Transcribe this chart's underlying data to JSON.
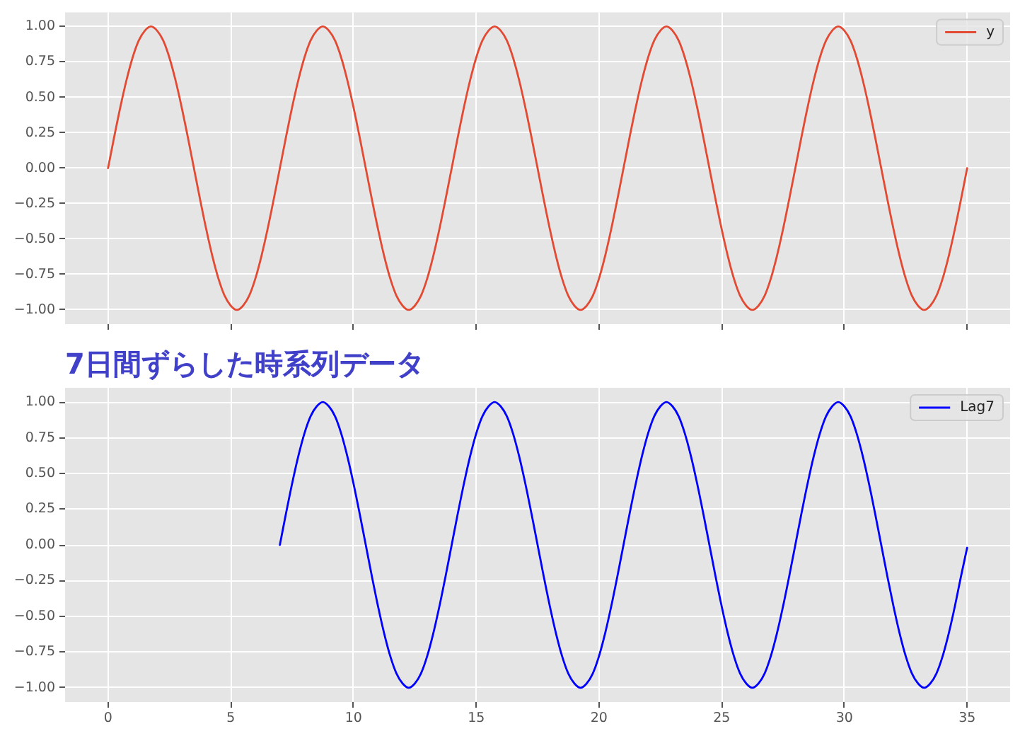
{
  "chart_data": [
    {
      "type": "line",
      "x": [
        0,
        0.25,
        0.5,
        0.75,
        1,
        1.25,
        1.5,
        1.75,
        2,
        2.25,
        2.5,
        2.75,
        3,
        3.25,
        3.5,
        3.75,
        4,
        4.25,
        4.5,
        4.75,
        5,
        5.25,
        5.5,
        5.75,
        6,
        6.25,
        6.5,
        6.75,
        7,
        7.25,
        7.5,
        7.75,
        8,
        8.25,
        8.5,
        8.75,
        9,
        9.25,
        9.5,
        9.75,
        10,
        10.25,
        10.5,
        10.75,
        11,
        11.25,
        11.5,
        11.75,
        12,
        12.25,
        12.5,
        12.75,
        13,
        13.25,
        13.5,
        13.75,
        14,
        14.25,
        14.5,
        14.75,
        15,
        15.25,
        15.5,
        15.75,
        16,
        16.25,
        16.5,
        16.75,
        17,
        17.25,
        17.5,
        17.75,
        18,
        18.25,
        18.5,
        18.75,
        19,
        19.25,
        19.5,
        19.75,
        20,
        20.25,
        20.5,
        20.75,
        21,
        21.25,
        21.5,
        21.75,
        22,
        22.25,
        22.5,
        22.75,
        23,
        23.25,
        23.5,
        23.75,
        24,
        24.25,
        24.5,
        24.75,
        25,
        25.25,
        25.5,
        25.75,
        26,
        26.25,
        26.5,
        26.75,
        27,
        27.25,
        27.5,
        27.75,
        28,
        28.25,
        28.5,
        28.75,
        29,
        29.25,
        29.5,
        29.75,
        30,
        30.25,
        30.5,
        30.75,
        31,
        31.25,
        31.5,
        31.75,
        32,
        32.25,
        32.5,
        32.75,
        33,
        33.25,
        33.5,
        33.75,
        34,
        34.25,
        34.5,
        34.75,
        35
      ],
      "series": [
        {
          "name": "y",
          "color": "#e24a33",
          "values": [
            0,
            0.22,
            0.43,
            0.62,
            0.78,
            0.9,
            0.97,
            1,
            0.97,
            0.9,
            0.78,
            0.62,
            0.43,
            0.22,
            0,
            -0.22,
            -0.43,
            -0.62,
            -0.78,
            -0.9,
            -0.97,
            -1,
            -0.97,
            -0.9,
            -0.78,
            -0.62,
            -0.43,
            -0.22,
            0,
            0.22,
            0.43,
            0.62,
            0.78,
            0.9,
            0.97,
            1,
            0.97,
            0.9,
            0.78,
            0.62,
            0.43,
            0.22,
            0,
            -0.22,
            -0.43,
            -0.62,
            -0.78,
            -0.9,
            -0.97,
            -1,
            -0.97,
            -0.9,
            -0.78,
            -0.62,
            -0.43,
            -0.22,
            0,
            0.22,
            0.43,
            0.62,
            0.78,
            0.9,
            0.97,
            1,
            0.97,
            0.9,
            0.78,
            0.62,
            0.43,
            0.22,
            0,
            -0.22,
            -0.43,
            -0.62,
            -0.78,
            -0.9,
            -0.97,
            -1,
            -0.97,
            -0.9,
            -0.78,
            -0.62,
            -0.43,
            -0.22,
            0,
            0.22,
            0.43,
            0.62,
            0.78,
            0.9,
            0.97,
            1,
            0.97,
            0.9,
            0.78,
            0.62,
            0.43,
            0.22,
            0,
            -0.22,
            -0.43,
            -0.62,
            -0.78,
            -0.9,
            -0.97,
            -1,
            -0.97,
            -0.9,
            -0.78,
            -0.62,
            -0.43,
            -0.22,
            0,
            0.22,
            0.43,
            0.62,
            0.78,
            0.9,
            0.97,
            1,
            0.97,
            0.9,
            0.78,
            0.62,
            0.43,
            0.22,
            0,
            -0.22,
            -0.43,
            -0.62,
            -0.78,
            -0.9,
            -0.97,
            -1,
            -0.97,
            -0.9,
            -0.78,
            -0.62,
            -0.43,
            -0.22,
            0
          ]
        }
      ],
      "xlim": [
        -1.75,
        36.75
      ],
      "ylim": [
        -1.1,
        1.1
      ],
      "xticks": [
        0,
        5,
        10,
        15,
        20,
        25,
        30,
        35
      ],
      "yticks": [
        {
          "value": -1,
          "label": "−1.00"
        },
        {
          "value": -0.75,
          "label": "−0.75"
        },
        {
          "value": -0.5,
          "label": "−0.50"
        },
        {
          "value": -0.25,
          "label": "−0.25"
        },
        {
          "value": 0,
          "label": "0.00"
        },
        {
          "value": 0.25,
          "label": "0.25"
        },
        {
          "value": 0.5,
          "label": "0.50"
        },
        {
          "value": 0.75,
          "label": "0.75"
        },
        {
          "value": 1,
          "label": "1.00"
        }
      ],
      "tick_labels": "y",
      "grid": true,
      "legend": "top right"
    },
    {
      "type": "line",
      "title": "7日間ずらした時系列データ",
      "series": [
        {
          "name": "Lag7",
          "color": "#0000ff",
          "x": [
            7,
            7.25,
            7.5,
            7.75,
            8,
            8.25,
            8.5,
            8.75,
            9,
            9.25,
            9.5,
            9.75,
            10,
            10.25,
            10.5,
            10.75,
            11,
            11.25,
            11.5,
            11.75,
            12,
            12.25,
            12.5,
            12.75,
            13,
            13.25,
            13.5,
            13.75,
            14,
            14.25,
            14.5,
            14.75,
            15,
            15.25,
            15.5,
            15.75,
            16,
            16.25,
            16.5,
            16.75,
            17,
            17.25,
            17.5,
            17.75,
            18,
            18.25,
            18.5,
            18.75,
            19,
            19.25,
            19.5,
            19.75,
            20,
            20.25,
            20.5,
            20.75,
            21,
            21.25,
            21.5,
            21.75,
            22,
            22.25,
            22.5,
            22.75,
            23,
            23.25,
            23.5,
            23.75,
            24,
            24.25,
            24.5,
            24.75,
            25,
            25.25,
            25.5,
            25.75,
            26,
            26.25,
            26.5,
            26.75,
            27,
            27.25,
            27.5,
            27.75,
            28,
            28.25,
            28.5,
            28.75,
            29,
            29.25,
            29.5,
            29.75,
            30,
            30.25,
            30.5,
            30.75,
            31,
            31.25,
            31.5,
            31.75,
            32,
            32.25,
            32.5,
            32.75,
            33,
            33.25,
            33.5,
            33.75,
            34,
            34.25,
            34.5,
            34.75,
            35
          ],
          "values": [
            0,
            0.22,
            0.43,
            0.62,
            0.78,
            0.9,
            0.97,
            1,
            0.97,
            0.9,
            0.78,
            0.62,
            0.43,
            0.22,
            0,
            -0.22,
            -0.43,
            -0.62,
            -0.78,
            -0.9,
            -0.97,
            -1,
            -0.97,
            -0.9,
            -0.78,
            -0.62,
            -0.43,
            -0.22,
            0,
            0.22,
            0.43,
            0.62,
            0.78,
            0.9,
            0.97,
            1,
            0.97,
            0.9,
            0.78,
            0.62,
            0.43,
            0.22,
            0,
            -0.22,
            -0.43,
            -0.62,
            -0.78,
            -0.9,
            -0.97,
            -1,
            -0.97,
            -0.9,
            -0.78,
            -0.62,
            -0.43,
            -0.22,
            0,
            0.22,
            0.43,
            0.62,
            0.78,
            0.9,
            0.97,
            1,
            0.97,
            0.9,
            0.78,
            0.62,
            0.43,
            0.22,
            0,
            -0.22,
            -0.43,
            -0.62,
            -0.78,
            -0.9,
            -0.97,
            -1,
            -0.97,
            -0.9,
            -0.78,
            -0.62,
            -0.43,
            -0.22,
            0,
            0.22,
            0.43,
            0.62,
            0.78,
            0.9,
            0.97,
            1,
            0.97,
            0.9,
            0.78,
            0.62,
            0.43,
            0.22,
            0,
            -0.22,
            -0.43,
            -0.62,
            -0.78,
            -0.9,
            -0.97,
            -1,
            -0.97,
            -0.9,
            -0.78,
            -0.62,
            -0.43,
            -0.22,
            -0.02
          ]
        }
      ],
      "xlim": [
        -1.75,
        36.75
      ],
      "ylim": [
        -1.1,
        1.1
      ],
      "xticks": [
        0,
        5,
        10,
        15,
        20,
        25,
        30,
        35
      ],
      "yticks": [
        {
          "value": -1,
          "label": "−1.00"
        },
        {
          "value": -0.75,
          "label": "−0.75"
        },
        {
          "value": -0.5,
          "label": "−0.50"
        },
        {
          "value": -0.25,
          "label": "−0.25"
        },
        {
          "value": 0,
          "label": "0.00"
        },
        {
          "value": 0.25,
          "label": "0.25"
        },
        {
          "value": 0.5,
          "label": "0.50"
        },
        {
          "value": 0.75,
          "label": "0.75"
        },
        {
          "value": 1,
          "label": "1.00"
        }
      ],
      "grid": true,
      "legend": "top right"
    }
  ]
}
